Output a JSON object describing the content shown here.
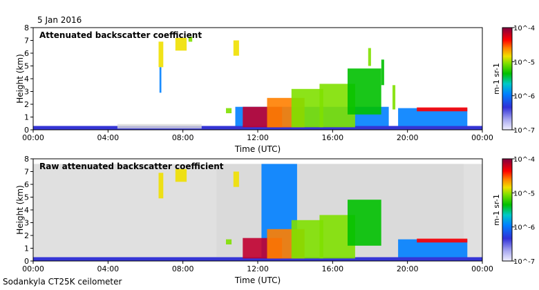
{
  "date_label": "5 Jan 2016",
  "footer": "Sodankyla CT25K ceilometer",
  "colors": {
    "background": "#ffffff",
    "clutter": "#d8d8d8",
    "scale": [
      "#f0f0ff",
      "#a8a8f0",
      "#5050e0",
      "#1f1fd0",
      "#0080ff",
      "#00c8c8",
      "#00c000",
      "#80e000",
      "#f0e000",
      "#ff8000",
      "#ff0000",
      "#c00030",
      "#800040"
    ]
  },
  "chart_data": [
    {
      "type": "heatmap",
      "title": "Attenuated backscatter coefficient",
      "xlabel": "Time (UTC)",
      "ylabel": "Height (km)",
      "x_ticks": [
        "00:00",
        "04:00",
        "08:00",
        "12:00",
        "16:00",
        "20:00",
        "00:00"
      ],
      "y_ticks": [
        "0",
        "1",
        "2",
        "3",
        "4",
        "5",
        "6",
        "7",
        "8"
      ],
      "xlim": [
        0,
        24
      ],
      "ylim": [
        0,
        8
      ],
      "colorbar": {
        "ticks": [
          "10^-4",
          "10^-5",
          "10^-6",
          "10^-7"
        ],
        "label": "m-1 sr-1",
        "scale": "log",
        "range": [
          1e-07,
          0.0001
        ]
      },
      "features": [
        {
          "x": [
            0,
            24
          ],
          "y": [
            0,
            0.3
          ],
          "level": 0.25
        },
        {
          "x": [
            4.5,
            9
          ],
          "y": [
            0.1,
            0.45
          ],
          "level": 0.08,
          "clutter": true
        },
        {
          "x": [
            6.7,
            6.95
          ],
          "y": [
            4.9,
            6.9
          ],
          "level": 0.7
        },
        {
          "x": [
            7.6,
            8.2
          ],
          "y": [
            6.2,
            7.2
          ],
          "level": 0.65
        },
        {
          "x": [
            8.3,
            8.5
          ],
          "y": [
            6.9,
            7.3
          ],
          "level": 0.6
        },
        {
          "x": [
            10.7,
            11
          ],
          "y": [
            5.8,
            7.0
          ],
          "level": 0.7
        },
        {
          "x": [
            6.75,
            6.85
          ],
          "y": [
            2.9,
            4.9
          ],
          "level": 0.3
        },
        {
          "x": [
            10.3,
            10.6
          ],
          "y": [
            1.3,
            1.7
          ],
          "level": 0.6
        },
        {
          "x": [
            10.8,
            19
          ],
          "y": [
            0.3,
            1.8
          ],
          "level": 0.35
        },
        {
          "x": [
            11.2,
            13.3
          ],
          "y": [
            0.2,
            1.8
          ],
          "level": 0.88
        },
        {
          "x": [
            12.5,
            14.5
          ],
          "y": [
            0.2,
            2.5
          ],
          "level": 0.72
        },
        {
          "x": [
            13.8,
            15.5
          ],
          "y": [
            0.2,
            3.2
          ],
          "level": 0.62
        },
        {
          "x": [
            15.3,
            17.2
          ],
          "y": [
            0.2,
            3.6
          ],
          "level": 0.55
        },
        {
          "x": [
            16.8,
            18.6
          ],
          "y": [
            1.2,
            4.8
          ],
          "level": 0.5
        },
        {
          "x": [
            17.9,
            18.05
          ],
          "y": [
            5.0,
            6.4
          ],
          "level": 0.55
        },
        {
          "x": [
            18.6,
            18.75
          ],
          "y": [
            3.5,
            5.5
          ],
          "level": 0.5
        },
        {
          "x": [
            19.2,
            19.35
          ],
          "y": [
            1.6,
            3.5
          ],
          "level": 0.55
        },
        {
          "x": [
            19.5,
            23.2
          ],
          "y": [
            0.3,
            1.7
          ],
          "level": 0.32
        },
        {
          "x": [
            20.5,
            23.2
          ],
          "y": [
            1.45,
            1.75
          ],
          "level": 0.82
        }
      ]
    },
    {
      "type": "heatmap",
      "title": "Raw attenuated backscatter coefficient",
      "xlabel": "Time (UTC)",
      "ylabel": "Height (km)",
      "x_ticks": [
        "00:00",
        "04:00",
        "08:00",
        "12:00",
        "16:00",
        "20:00",
        "00:00"
      ],
      "y_ticks": [
        "0",
        "1",
        "2",
        "3",
        "4",
        "5",
        "6",
        "7",
        "8"
      ],
      "xlim": [
        0,
        24
      ],
      "ylim": [
        0,
        8
      ],
      "colorbar": {
        "ticks": [
          "10^-4",
          "10^-5",
          "10^-6",
          "10^-7"
        ],
        "label": "m-1 sr-1",
        "scale": "log",
        "range": [
          1e-07,
          0.0001
        ]
      },
      "features": [
        {
          "x": [
            0,
            24
          ],
          "y": [
            0,
            0.3
          ],
          "level": 0.25
        },
        {
          "x": [
            0,
            24
          ],
          "y": [
            0.3,
            7.6
          ],
          "level": 0.06,
          "clutter": true
        },
        {
          "x": [
            9.8,
            23
          ],
          "y": [
            0.3,
            7.6
          ],
          "level": 0.1,
          "clutter": true
        },
        {
          "x": [
            12.2,
            14.1
          ],
          "y": [
            0.3,
            7.6
          ],
          "level": 0.3
        },
        {
          "x": [
            6.7,
            6.95
          ],
          "y": [
            4.9,
            6.9
          ],
          "level": 0.7
        },
        {
          "x": [
            7.6,
            8.2
          ],
          "y": [
            6.2,
            7.2
          ],
          "level": 0.65
        },
        {
          "x": [
            10.7,
            11
          ],
          "y": [
            5.8,
            7.0
          ],
          "level": 0.7
        },
        {
          "x": [
            10.3,
            10.6
          ],
          "y": [
            1.3,
            1.7
          ],
          "level": 0.6
        },
        {
          "x": [
            11.2,
            13.3
          ],
          "y": [
            0.2,
            1.8
          ],
          "level": 0.88
        },
        {
          "x": [
            12.5,
            14.5
          ],
          "y": [
            0.2,
            2.5
          ],
          "level": 0.72
        },
        {
          "x": [
            13.8,
            15.5
          ],
          "y": [
            0.2,
            3.2
          ],
          "level": 0.62
        },
        {
          "x": [
            15.3,
            17.2
          ],
          "y": [
            0.2,
            3.6
          ],
          "level": 0.55
        },
        {
          "x": [
            16.8,
            18.6
          ],
          "y": [
            1.2,
            4.8
          ],
          "level": 0.5
        },
        {
          "x": [
            19.5,
            23.2
          ],
          "y": [
            0.3,
            1.7
          ],
          "level": 0.32
        },
        {
          "x": [
            20.5,
            23.2
          ],
          "y": [
            1.45,
            1.75
          ],
          "level": 0.82
        }
      ]
    }
  ]
}
